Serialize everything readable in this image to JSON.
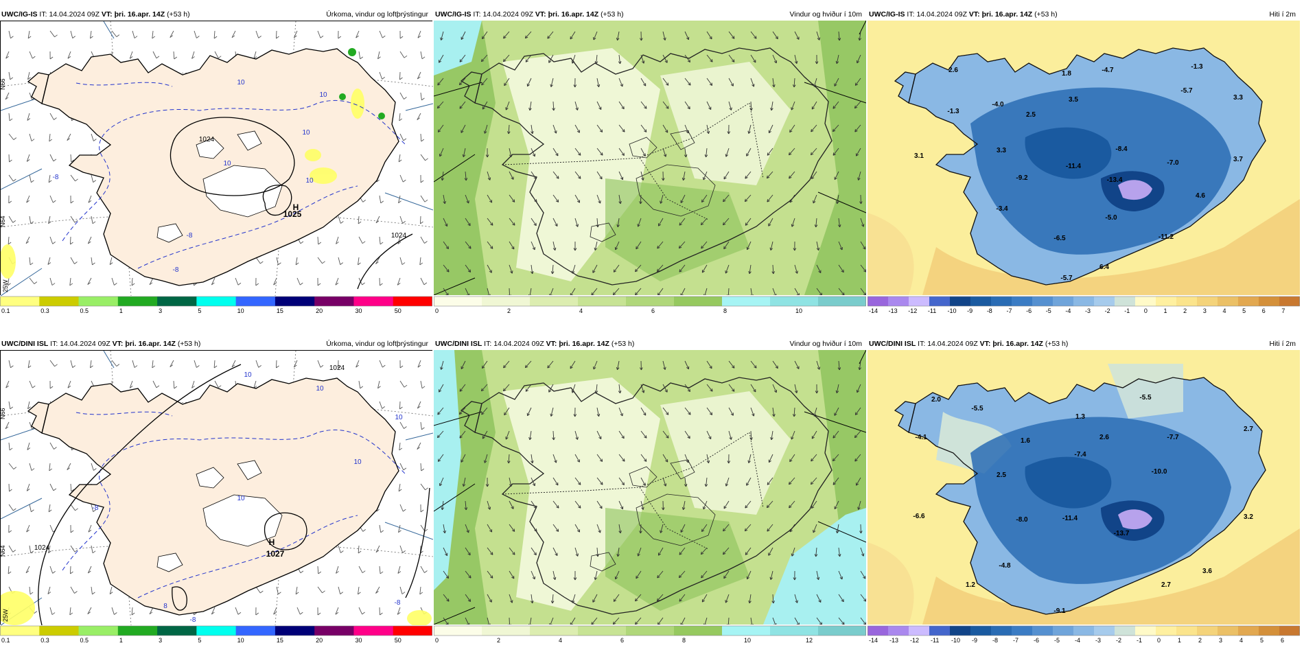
{
  "panels": [
    {
      "id": "igis-precip",
      "model": "UWC/IG-IS",
      "it_label": "IT:",
      "it_value": "14.04.2024 09Z",
      "vt_label": "VT:",
      "vt_value": "þri. 16.apr. 14Z",
      "lead": "(+53 h)",
      "field": "Úrkoma, vindur og loftþrýstingur",
      "colorbar": {
        "colors": [
          "#ffff80",
          "#cccc00",
          "#99ee66",
          "#22aa22",
          "#006644",
          "#00ffee",
          "#3366ff",
          "#000077",
          "#770066",
          "#ff0088",
          "#ff0000"
        ],
        "ticks": [
          "0.1",
          "0.3",
          "0.5",
          "1",
          "3",
          "5",
          "10",
          "15",
          "20",
          "30",
          "50"
        ]
      },
      "labels": [
        "10",
        "10",
        "10",
        "10",
        "10",
        "1024",
        "1025",
        "H",
        "-8",
        "-8",
        "-8",
        "1024"
      ],
      "lat_labels": [
        "N66",
        "N64"
      ],
      "lon_labels": [
        "25W"
      ],
      "colors": {
        "land": "#fdeede",
        "sea": "#ffffff",
        "isobar": "#000000",
        "isotherm": "#2233cc",
        "precip": "#ffff66"
      }
    },
    {
      "id": "igis-wind",
      "model": "UWC/IG-IS",
      "it_label": "IT:",
      "it_value": "14.04.2024 09Z",
      "vt_label": "VT:",
      "vt_value": "þri. 16.apr. 14Z",
      "lead": "(+53 h)",
      "field": "Vindur og hviður í 10m",
      "colorbar": {
        "colors": [
          "#fcfde8",
          "#f0f7d4",
          "#dcedb0",
          "#c7e394",
          "#b0d77a",
          "#96c95f",
          "#a6f4f4",
          "#8fe3e3",
          "#7acccc"
        ],
        "ticks": [
          "0",
          "2",
          "4",
          "6",
          "8",
          "10"
        ]
      },
      "colors": {
        "base": "#c4e08f",
        "light": "#f4f9de",
        "dark": "#8cc25a",
        "cyan": "#a8f0f0"
      }
    },
    {
      "id": "igis-temp",
      "model": "UWC/IG-IS",
      "it_label": "IT:",
      "it_value": "14.04.2024 09Z",
      "vt_label": "VT:",
      "vt_value": "þri. 16.apr. 14Z",
      "lead": "(+53 h)",
      "field": "Hiti í 2m",
      "colorbar": {
        "colors": [
          "#9966dd",
          "#aa88ee",
          "#ccbbff",
          "#4466cc",
          "#114488",
          "#1a5aa0",
          "#2a6cb4",
          "#3b7cc4",
          "#5590d0",
          "#6fa4da",
          "#8ab8e4",
          "#a6cbec",
          "#cfe3d9",
          "#fffac8",
          "#fff0a0",
          "#fbe48c",
          "#f4d37a",
          "#ebc066",
          "#e2a850",
          "#d4903a",
          "#c87830"
        ],
        "ticks": [
          "-14",
          "-13",
          "-12",
          "-11",
          "-10",
          "-9",
          "-8",
          "-7",
          "-6",
          "-5",
          "-4",
          "-3",
          "-2",
          "-1",
          "0",
          "1",
          "2",
          "3",
          "4",
          "5",
          "6",
          "7"
        ]
      },
      "labels": [
        "2.6",
        "-1.3",
        "-4.0",
        "3.1",
        "3.3",
        "2.5",
        "1.8",
        "3.5",
        "-4.7",
        "-1.3",
        "-5.7",
        "3.3",
        "-8.4",
        "-7.0",
        "3.7",
        "-9.2",
        "-11.4",
        "-13.4",
        "4.6",
        "-3.4",
        "-5.0",
        "-6.5",
        "-11.2",
        "-5.7",
        "6.4"
      ],
      "colors": {
        "sea": "#fbee9c",
        "land_high": "#2a6cb4",
        "land_low": "#8ab8e4",
        "peak": "#b7a2ec",
        "coast": "#f2ce7a"
      }
    },
    {
      "id": "dini-precip",
      "model": "UWC/DINI ISL",
      "it_label": "IT:",
      "it_value": "14.04.2024 09Z",
      "vt_label": "VT:",
      "vt_value": "þri. 16.apr. 14Z",
      "lead": "(+53 h)",
      "field": "Úrkoma, vindur og loftþrýstingur",
      "colorbar": {
        "colors": [
          "#ffff80",
          "#cccc00",
          "#99ee66",
          "#22aa22",
          "#006644",
          "#00ffee",
          "#3366ff",
          "#000077",
          "#770066",
          "#ff0088",
          "#ff0000"
        ],
        "ticks": [
          "0.1",
          "0.3",
          "0.5",
          "1",
          "3",
          "5",
          "10",
          "15",
          "20",
          "30",
          "50"
        ]
      },
      "labels": [
        "1024",
        "10",
        "10",
        "10",
        "10",
        "-8",
        "10",
        "H",
        "1027",
        "-8",
        "1024",
        "8",
        "-8"
      ],
      "lat_labels": [
        "N66",
        "N64"
      ],
      "lon_labels": [
        "25W"
      ],
      "colors": {
        "land": "#fdeede",
        "sea": "#ffffff",
        "isobar": "#000000",
        "isotherm": "#2233cc",
        "precip": "#ffff66"
      }
    },
    {
      "id": "dini-wind",
      "model": "UWC/DINI ISL",
      "it_label": "IT:",
      "it_value": "14.04.2024 09Z",
      "vt_label": "VT:",
      "vt_value": "þri. 16.apr. 14Z",
      "lead": "(+53 h)",
      "field": "Vindur og hviður í 10m",
      "colorbar": {
        "colors": [
          "#fcfde8",
          "#f0f7d4",
          "#dcedb0",
          "#c7e394",
          "#b0d77a",
          "#96c95f",
          "#a6f4f4",
          "#8fe3e3",
          "#7acccc"
        ],
        "ticks": [
          "0",
          "2",
          "4",
          "6",
          "8",
          "10",
          "12"
        ]
      },
      "colors": {
        "base": "#c4e08f",
        "light": "#f4f9de",
        "dark": "#8cc25a",
        "cyan": "#a8f0f0"
      }
    },
    {
      "id": "dini-temp",
      "model": "UWC/DINI ISL",
      "it_label": "IT:",
      "it_value": "14.04.2024 09Z",
      "vt_label": "VT:",
      "vt_value": "þri. 16.apr. 14Z",
      "lead": "(+53 h)",
      "field": "Hiti í 2m",
      "colorbar": {
        "colors": [
          "#9966dd",
          "#aa88ee",
          "#ccbbff",
          "#4466cc",
          "#114488",
          "#1a5aa0",
          "#2a6cb4",
          "#3b7cc4",
          "#5590d0",
          "#6fa4da",
          "#8ab8e4",
          "#a6cbec",
          "#cfe3d9",
          "#fffac8",
          "#fff0a0",
          "#fbe48c",
          "#f4d37a",
          "#ebc066",
          "#e2a850",
          "#d4903a",
          "#c87830"
        ],
        "ticks": [
          "-14",
          "-13",
          "-12",
          "-11",
          "-10",
          "-9",
          "-8",
          "-7",
          "-6",
          "-5",
          "-4",
          "-3",
          "-2",
          "-1",
          "0",
          "1",
          "2",
          "3",
          "4",
          "5",
          "6"
        ]
      },
      "labels": [
        "2.0",
        "-5.5",
        "-4.1",
        "1.3",
        "2.6",
        "-5.5",
        "-7.7",
        "2.7",
        "1.6",
        "-7.4",
        "-10.0",
        "2.5",
        "-6.6",
        "-8.0",
        "-11.4",
        "-13.7",
        "3.2",
        "-4.8",
        "3.6",
        "1.2",
        "2.7",
        "-9.1"
      ],
      "colors": {
        "sea": "#fbee9c",
        "land_high": "#2a6cb4",
        "land_low": "#8ab8e4",
        "peak": "#b7a2ec",
        "coast": "#f2ce7a"
      }
    }
  ]
}
